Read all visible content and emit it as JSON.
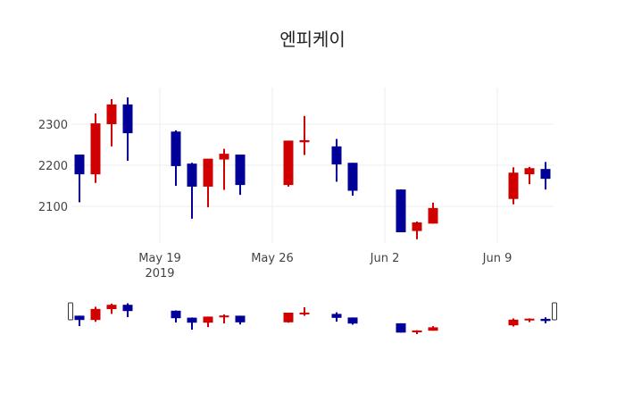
{
  "chart_data": {
    "type": "candlestick",
    "title": "엔피케이",
    "xlabel": "",
    "ylabel": "",
    "ylim": [
      2000,
      2390
    ],
    "y_ticks": [
      2100,
      2200,
      2300
    ],
    "x_ticks": [
      {
        "date": "2019-05-19",
        "label": "May 19",
        "sublabel": "2019"
      },
      {
        "date": "2019-05-26",
        "label": "May 26",
        "sublabel": ""
      },
      {
        "date": "2019-06-02",
        "label": "Jun 2",
        "sublabel": ""
      },
      {
        "date": "2019-06-09",
        "label": "Jun 9",
        "sublabel": ""
      }
    ],
    "grid": true,
    "rangeslider": true,
    "colors": {
      "increasing": "#d10000",
      "decreasing": "#000099",
      "grid": "#eeeeee"
    },
    "series": [
      {
        "date": "2019-05-14",
        "open": 2226,
        "high": 2226,
        "low": 2110,
        "close": 2178
      },
      {
        "date": "2019-05-15",
        "open": 2178,
        "high": 2326,
        "low": 2157,
        "close": 2302
      },
      {
        "date": "2019-05-16",
        "open": 2300,
        "high": 2361,
        "low": 2246,
        "close": 2348
      },
      {
        "date": "2019-05-17",
        "open": 2348,
        "high": 2365,
        "low": 2211,
        "close": 2278
      },
      {
        "date": "2019-05-20",
        "open": 2282,
        "high": 2285,
        "low": 2150,
        "close": 2198
      },
      {
        "date": "2019-05-21",
        "open": 2204,
        "high": 2206,
        "low": 2070,
        "close": 2148
      },
      {
        "date": "2019-05-22",
        "open": 2148,
        "high": 2216,
        "low": 2098,
        "close": 2216
      },
      {
        "date": "2019-05-23",
        "open": 2214,
        "high": 2240,
        "low": 2140,
        "close": 2228
      },
      {
        "date": "2019-05-24",
        "open": 2226,
        "high": 2226,
        "low": 2128,
        "close": 2152
      },
      {
        "date": "2019-05-27",
        "open": 2152,
        "high": 2260,
        "low": 2148,
        "close": 2260
      },
      {
        "date": "2019-05-28",
        "open": 2256,
        "high": 2320,
        "low": 2225,
        "close": 2261
      },
      {
        "date": "2019-05-30",
        "open": 2246,
        "high": 2264,
        "low": 2160,
        "close": 2202
      },
      {
        "date": "2019-05-31",
        "open": 2206,
        "high": 2206,
        "low": 2126,
        "close": 2138
      },
      {
        "date": "2019-06-03",
        "open": 2141,
        "high": 2141,
        "low": 2037,
        "close": 2037
      },
      {
        "date": "2019-06-04",
        "open": 2040,
        "high": 2063,
        "low": 2020,
        "close": 2061
      },
      {
        "date": "2019-06-05",
        "open": 2058,
        "high": 2109,
        "low": 2058,
        "close": 2096
      },
      {
        "date": "2019-06-10",
        "open": 2118,
        "high": 2195,
        "low": 2105,
        "close": 2182
      },
      {
        "date": "2019-06-11",
        "open": 2178,
        "high": 2196,
        "low": 2154,
        "close": 2193
      },
      {
        "date": "2019-06-12",
        "open": 2191,
        "high": 2208,
        "low": 2141,
        "close": 2167
      }
    ]
  }
}
